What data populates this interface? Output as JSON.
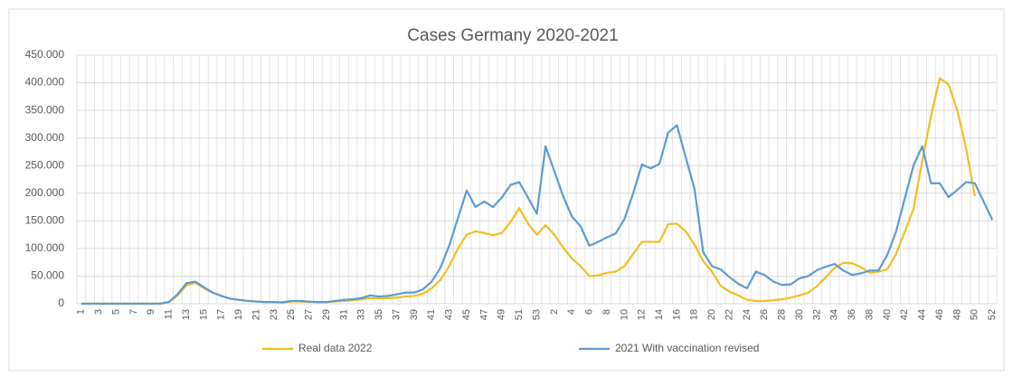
{
  "chart_data": {
    "type": "line",
    "title": "Cases Germany 2020-2021",
    "categories": [
      1,
      null,
      3,
      null,
      5,
      null,
      7,
      null,
      9,
      null,
      11,
      null,
      13,
      null,
      15,
      null,
      17,
      null,
      19,
      null,
      21,
      null,
      23,
      null,
      25,
      null,
      27,
      null,
      29,
      null,
      31,
      null,
      33,
      null,
      35,
      null,
      37,
      null,
      39,
      null,
      41,
      null,
      43,
      null,
      45,
      null,
      47,
      null,
      49,
      null,
      51,
      null,
      53,
      null,
      2,
      null,
      4,
      null,
      6,
      null,
      8,
      null,
      10,
      null,
      12,
      null,
      14,
      null,
      16,
      null,
      18,
      null,
      20,
      null,
      22,
      null,
      24,
      null,
      26,
      null,
      28,
      null,
      30,
      null,
      32,
      null,
      34,
      null,
      36,
      null,
      38,
      null,
      40,
      null,
      42,
      null,
      44,
      null,
      46,
      null,
      48,
      null,
      50,
      null,
      52
    ],
    "series": [
      {
        "name": "Real data 2022",
        "color": "#f5bd1f",
        "values": [
          0,
          0,
          0,
          0,
          0,
          0,
          0,
          0,
          0,
          0,
          3000,
          15000,
          33000,
          38000,
          28000,
          20000,
          14000,
          9000,
          7000,
          5000,
          4000,
          3000,
          3000,
          2500,
          4000,
          4000,
          3000,
          3000,
          3000,
          4000,
          5000,
          6000,
          8000,
          10000,
          10000,
          10000,
          11000,
          13000,
          14000,
          18000,
          28000,
          43000,
          68000,
          100000,
          125000,
          131000,
          128000,
          124000,
          128000,
          148000,
          173000,
          145000,
          125000,
          142000,
          125000,
          102000,
          82000,
          68000,
          50000,
          51000,
          56000,
          58000,
          68000,
          90000,
          112000,
          112000,
          112000,
          144000,
          145000,
          131000,
          107000,
          77000,
          58000,
          32000,
          22000,
          15000,
          7000,
          5000,
          5000,
          6000,
          8000,
          11000,
          15000,
          20000,
          32000,
          48000,
          65000,
          74000,
          73000,
          66000,
          56000,
          58000,
          62000,
          90000,
          130000,
          172000,
          258000,
          340000,
          408000,
          397000,
          350000,
          282000,
          195000,
          null,
          null
        ]
      },
      {
        "name": "2021 With vaccination revised",
        "color": "#5b9bd5",
        "values": [
          0,
          0,
          0,
          0,
          0,
          0,
          0,
          0,
          0,
          0,
          3000,
          17000,
          37000,
          40000,
          30000,
          20000,
          14000,
          9000,
          7000,
          5000,
          4000,
          3000,
          3000,
          2500,
          5000,
          5000,
          4000,
          3000,
          3000,
          5000,
          7000,
          8000,
          10000,
          15000,
          13000,
          14000,
          17000,
          20000,
          20000,
          26000,
          40000,
          65000,
          105000,
          155000,
          205000,
          175000,
          185000,
          175000,
          192000,
          215000,
          220000,
          192000,
          163000,
          285000,
          240000,
          195000,
          158000,
          140000,
          105000,
          112000,
          120000,
          127000,
          153000,
          200000,
          252000,
          245000,
          253000,
          310000,
          323000,
          265000,
          208000,
          93000,
          68000,
          62000,
          48000,
          36000,
          28000,
          58000,
          52000,
          40000,
          34000,
          35000,
          46000,
          50000,
          61000,
          67000,
          72000,
          60000,
          52000,
          55000,
          60000,
          60000,
          88000,
          130000,
          190000,
          250000,
          285000,
          218000,
          218000,
          193000,
          206000,
          220000,
          218000,
          185000,
          152000
        ]
      }
    ],
    "ylim": [
      0,
      450000
    ],
    "yticks": [
      0,
      {
        "value": 50000,
        "label": "50.000"
      },
      {
        "value": 100000,
        "label": "100.000"
      },
      {
        "value": 150000,
        "label": "150.000"
      },
      {
        "value": 200000,
        "label": "200.000"
      },
      {
        "value": 250000,
        "label": "250.000"
      },
      {
        "value": 300000,
        "label": "300.000"
      },
      {
        "value": 350000,
        "label": "350.000"
      },
      {
        "value": 400000,
        "label": "400.000"
      },
      {
        "value": 450000,
        "label": "450.000"
      }
    ],
    "grid": true,
    "legend": "bottom"
  }
}
